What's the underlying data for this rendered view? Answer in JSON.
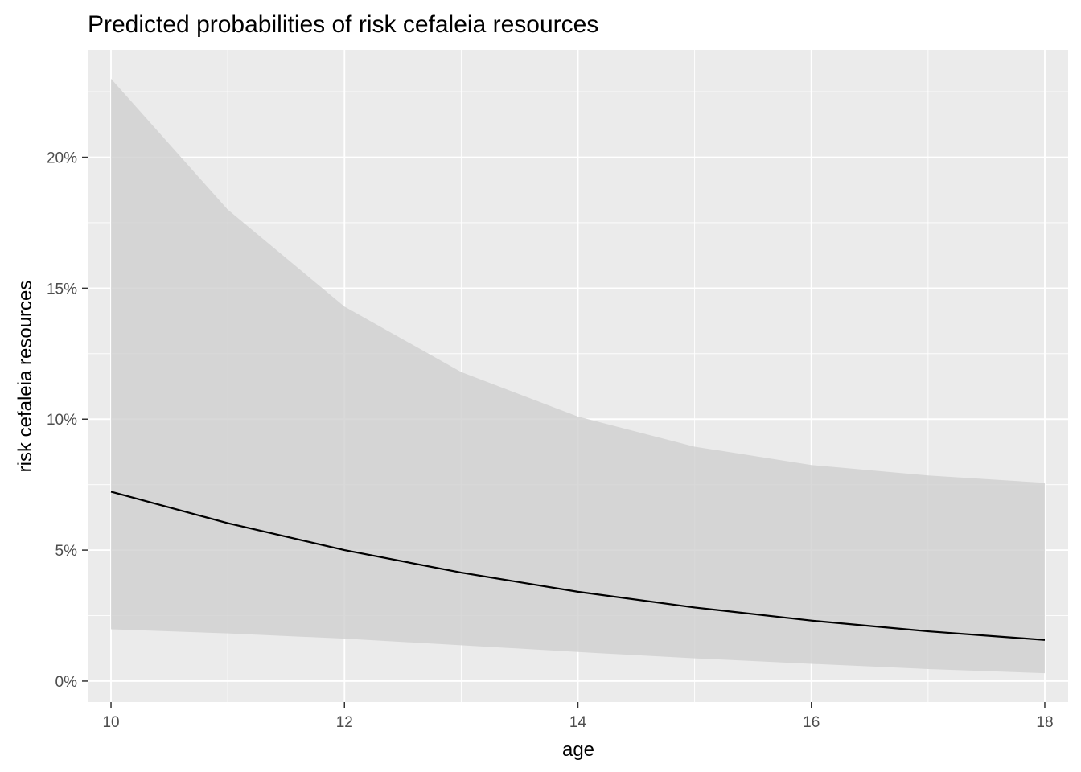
{
  "chart_data": {
    "type": "line",
    "title": "Predicted probabilities of risk cefaleia resources",
    "xlabel": "age",
    "ylabel": "risk cefaleia resources",
    "xlim": [
      9.8,
      18.2
    ],
    "ylim": [
      -0.008,
      0.241
    ],
    "x_ticks": [
      10,
      12,
      14,
      16,
      18
    ],
    "x_tick_labels": [
      "10",
      "12",
      "14",
      "16",
      "18"
    ],
    "y_ticks": [
      0,
      0.05,
      0.1,
      0.15,
      0.2
    ],
    "y_tick_labels": [
      "0%",
      "5%",
      "10%",
      "15%",
      "20%"
    ],
    "grid": true,
    "series": [
      {
        "x": [
          10,
          11,
          12,
          13,
          14,
          15,
          16,
          17,
          18
        ],
        "y": [
          0.0723,
          0.0603,
          0.05,
          0.0414,
          0.0341,
          0.0281,
          0.0231,
          0.019,
          0.0157
        ],
        "ci_low": [
          0.0198,
          0.0182,
          0.0162,
          0.0137,
          0.0111,
          0.0087,
          0.0066,
          0.0046,
          0.003
        ],
        "ci_high": [
          0.23,
          0.18,
          0.143,
          0.118,
          0.101,
          0.0895,
          0.0825,
          0.0785,
          0.0757
        ]
      }
    ],
    "colors": {
      "panel_background": "#ebebeb",
      "grid_major": "#ffffff",
      "ribbon": "#d0d0d0",
      "line": "#000000",
      "tick_text": "#4d4d4d",
      "tick_mark": "#333333"
    }
  }
}
